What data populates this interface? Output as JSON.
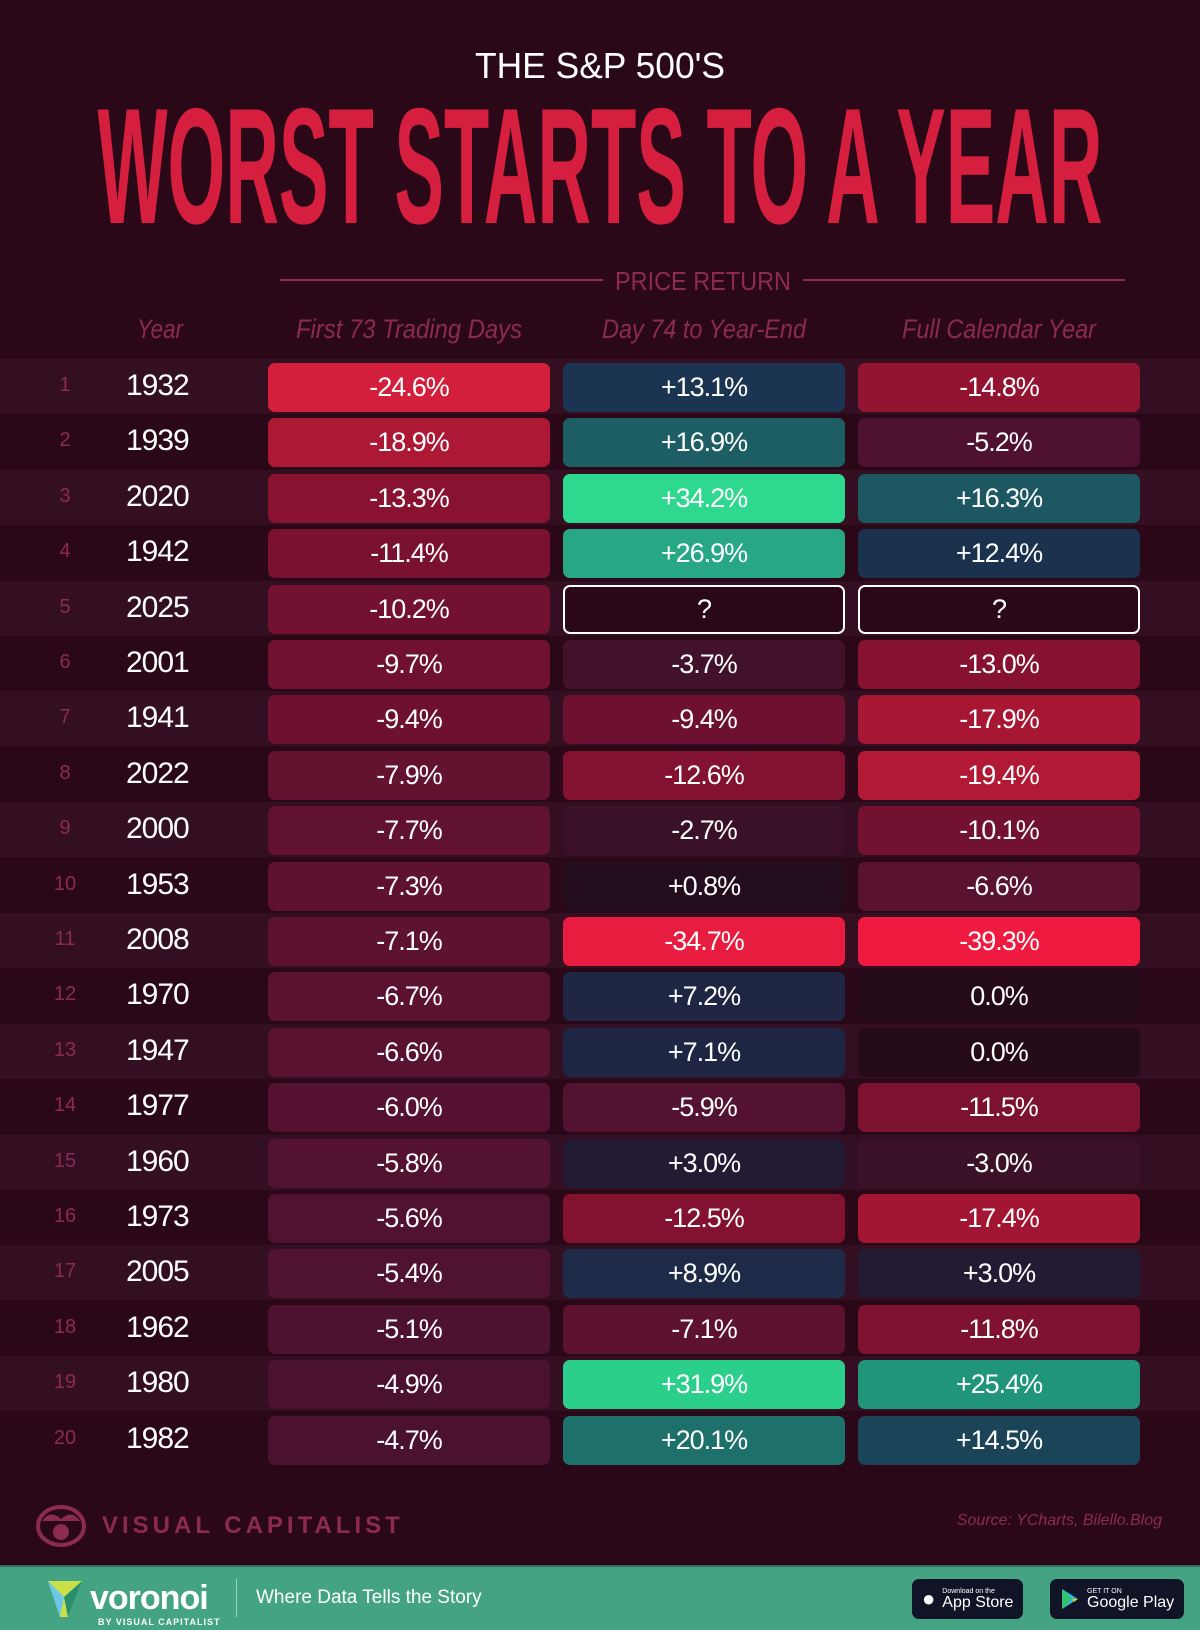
{
  "header": {
    "subtitle": "THE S&P 500'S",
    "title": "WORST STARTS TO A YEAR",
    "group_label": "PRICE RETURN"
  },
  "columns": {
    "year": "Year",
    "c1": "First 73 Trading Days",
    "c2": "Day 74 to Year-End",
    "c3": "Full Calendar Year"
  },
  "chart_data": {
    "type": "table",
    "title": "THE S&P 500'S WORST STARTS TO A YEAR",
    "columns": [
      "Year",
      "First 73 Trading Days",
      "Day 74 to Year-End",
      "Full Calendar Year"
    ],
    "rows": [
      {
        "rank": "1",
        "year": "1932",
        "c1": "-24.6%",
        "c2": "+13.1%",
        "c3": "-14.8%"
      },
      {
        "rank": "2",
        "year": "1939",
        "c1": "-18.9%",
        "c2": "+16.9%",
        "c3": "-5.2%"
      },
      {
        "rank": "3",
        "year": "2020",
        "c1": "-13.3%",
        "c2": "+34.2%",
        "c3": "+16.3%"
      },
      {
        "rank": "4",
        "year": "1942",
        "c1": "-11.4%",
        "c2": "+26.9%",
        "c3": "+12.4%"
      },
      {
        "rank": "5",
        "year": "2025",
        "c1": "-10.2%",
        "c2": "?",
        "c3": "?"
      },
      {
        "rank": "6",
        "year": "2001",
        "c1": "-9.7%",
        "c2": "-3.7%",
        "c3": "-13.0%"
      },
      {
        "rank": "7",
        "year": "1941",
        "c1": "-9.4%",
        "c2": "-9.4%",
        "c3": "-17.9%"
      },
      {
        "rank": "8",
        "year": "2022",
        "c1": "-7.9%",
        "c2": "-12.6%",
        "c3": "-19.4%"
      },
      {
        "rank": "9",
        "year": "2000",
        "c1": "-7.7%",
        "c2": "-2.7%",
        "c3": "-10.1%"
      },
      {
        "rank": "10",
        "year": "1953",
        "c1": "-7.3%",
        "c2": "+0.8%",
        "c3": "-6.6%"
      },
      {
        "rank": "11",
        "year": "2008",
        "c1": "-7.1%",
        "c2": "-34.7%",
        "c3": "-39.3%"
      },
      {
        "rank": "12",
        "year": "1970",
        "c1": "-6.7%",
        "c2": "+7.2%",
        "c3": "0.0%"
      },
      {
        "rank": "13",
        "year": "1947",
        "c1": "-6.6%",
        "c2": "+7.1%",
        "c3": "0.0%"
      },
      {
        "rank": "14",
        "year": "1977",
        "c1": "-6.0%",
        "c2": "-5.9%",
        "c3": "-11.5%"
      },
      {
        "rank": "15",
        "year": "1960",
        "c1": "-5.8%",
        "c2": "+3.0%",
        "c3": "-3.0%"
      },
      {
        "rank": "16",
        "year": "1973",
        "c1": "-5.6%",
        "c2": "-12.5%",
        "c3": "-17.4%"
      },
      {
        "rank": "17",
        "year": "2005",
        "c1": "-5.4%",
        "c2": "+8.9%",
        "c3": "+3.0%"
      },
      {
        "rank": "18",
        "year": "1962",
        "c1": "-5.1%",
        "c2": "-7.1%",
        "c3": "-11.8%"
      },
      {
        "rank": "19",
        "year": "1980",
        "c1": "-4.9%",
        "c2": "+31.9%",
        "c3": "+25.4%"
      },
      {
        "rank": "20",
        "year": "1982",
        "c1": "-4.7%",
        "c2": "+20.1%",
        "c3": "+14.5%"
      }
    ],
    "colors": {
      "negative_max": "#ef1a40",
      "neutral": "#250a17",
      "positive_mid": "#1b3350",
      "positive_max": "#2fd990",
      "unknown_outline": "#ffffff"
    }
  },
  "footer": {
    "brand": "VISUAL CAPITALIST",
    "source": "Source: YCharts, Bilello.Blog",
    "voronoi": "voronoi",
    "voronoi_by": "BY VISUAL CAPITALIST",
    "tagline": "Where Data Tells the Story",
    "app_store_small": "Download on the",
    "app_store": "App Store",
    "play_small": "GET IT ON",
    "play": "Google Play"
  },
  "colors": {
    "background": "#2a0818",
    "title": "#d61f3e",
    "muted": "#8c2a52",
    "band": "#43a383"
  }
}
